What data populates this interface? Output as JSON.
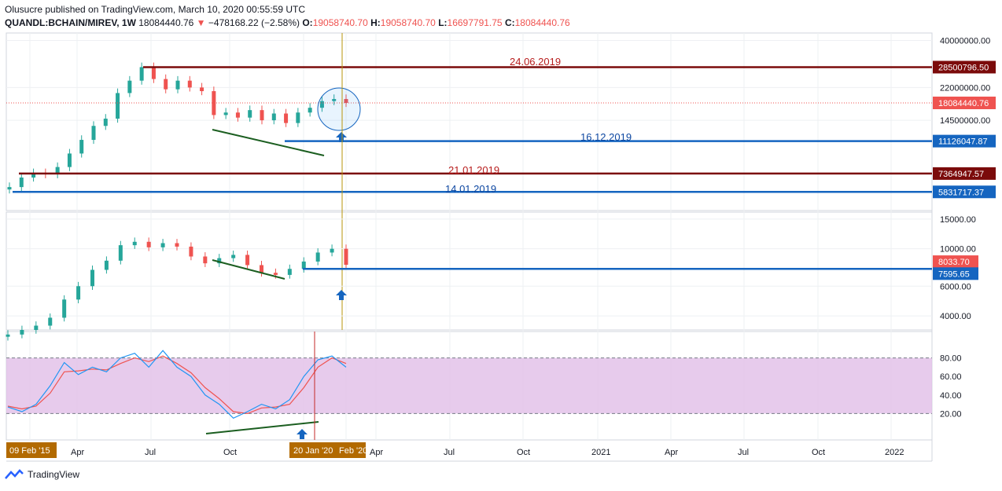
{
  "header": {
    "published": "Olusucre published on TradingView.com, March 10, 2020 00:55:59 UTC",
    "symbol": "QUANDL:BCHAIN/MIREV, 1W",
    "last": "18084440.76",
    "change": "−478168.22 (−2.58%)",
    "o_label": "O:",
    "o": "19058740.70",
    "h_label": "H:",
    "h": "19058740.70",
    "l_label": "L:",
    "l": "16697791.75",
    "c_label": "C:",
    "c": "18084440.76"
  },
  "footer": {
    "brand": "TradingView"
  },
  "colors": {
    "up": "#26a69a",
    "down": "#ef5350",
    "resistance": "#7b0b0b",
    "support": "#1565c0",
    "stoch_k": "#2196f3",
    "stoch_d": "#ef5350",
    "stoch_band": "#e1bee7",
    "marker": "#b7950b"
  },
  "chart_data": [
    {
      "type": "line",
      "title": "",
      "yticks": [
        "40000000.00",
        "22000000.00",
        "14500000.00"
      ],
      "price_labels": [
        "28500796.50",
        "18084440.76",
        "11126047.87",
        "7364947.57",
        "5831717.37"
      ],
      "annotations": [
        "24.06.2019",
        "16.12.2019",
        "21.01.2019",
        "14.01.2019"
      ],
      "scale": "log",
      "series": [
        {
          "values": [
            6.2,
            7.0,
            7.4,
            7.3,
            8.0,
            9.5,
            11.3,
            13.5,
            14.8,
            20.5,
            24.0,
            28.5,
            24.5,
            21.5,
            24.0,
            22.0,
            21.0,
            15.5,
            16.0,
            15.0,
            16.5,
            14.5,
            15.8,
            14.0,
            16.0,
            17.0,
            18.5,
            19.0,
            18.08
          ]
        }
      ],
      "resistance_levels": [
        28500796.5,
        7364947.57
      ],
      "support_levels": [
        11126047.87,
        5831717.37
      ]
    },
    {
      "type": "line",
      "title": "",
      "yticks": [
        "15000.00",
        "10000.00",
        "6000.00",
        "4000.00"
      ],
      "price_labels": [
        "8033.70",
        "7595.65"
      ],
      "scale": "log",
      "series": [
        {
          "values": [
            3100,
            3300,
            3500,
            3900,
            5000,
            6000,
            7500,
            8500,
            10500,
            11000,
            10200,
            10800,
            10300,
            9000,
            8200,
            8800,
            9200,
            8000,
            7200,
            7000,
            7600,
            8400,
            9500,
            10000,
            8033.7
          ]
        }
      ],
      "support_levels": [
        7595.65
      ]
    },
    {
      "type": "line",
      "title": "",
      "yticks": [
        "80.00",
        "60.00",
        "40.00",
        "20.00"
      ],
      "ylim": [
        0,
        100
      ],
      "band": [
        20,
        80
      ],
      "series": [
        {
          "values": [
            27,
            22,
            30,
            50,
            75,
            62,
            70,
            65,
            80,
            85,
            70,
            88,
            70,
            60,
            40,
            30,
            15,
            22,
            30,
            25,
            35,
            60,
            78,
            82,
            70
          ]
        },
        {
          "values": [
            28,
            25,
            28,
            42,
            65,
            66,
            68,
            67,
            74,
            80,
            76,
            82,
            74,
            64,
            48,
            36,
            22,
            20,
            26,
            27,
            30,
            48,
            70,
            80,
            74
          ]
        }
      ]
    }
  ],
  "time_axis": [
    "09 Feb '15",
    "Apr",
    "Jul",
    "Oct",
    "20 Jan '20",
    "Feb '20",
    "Apr",
    "Jul",
    "Oct",
    "2021",
    "Apr",
    "Jul",
    "Oct",
    "2022"
  ]
}
